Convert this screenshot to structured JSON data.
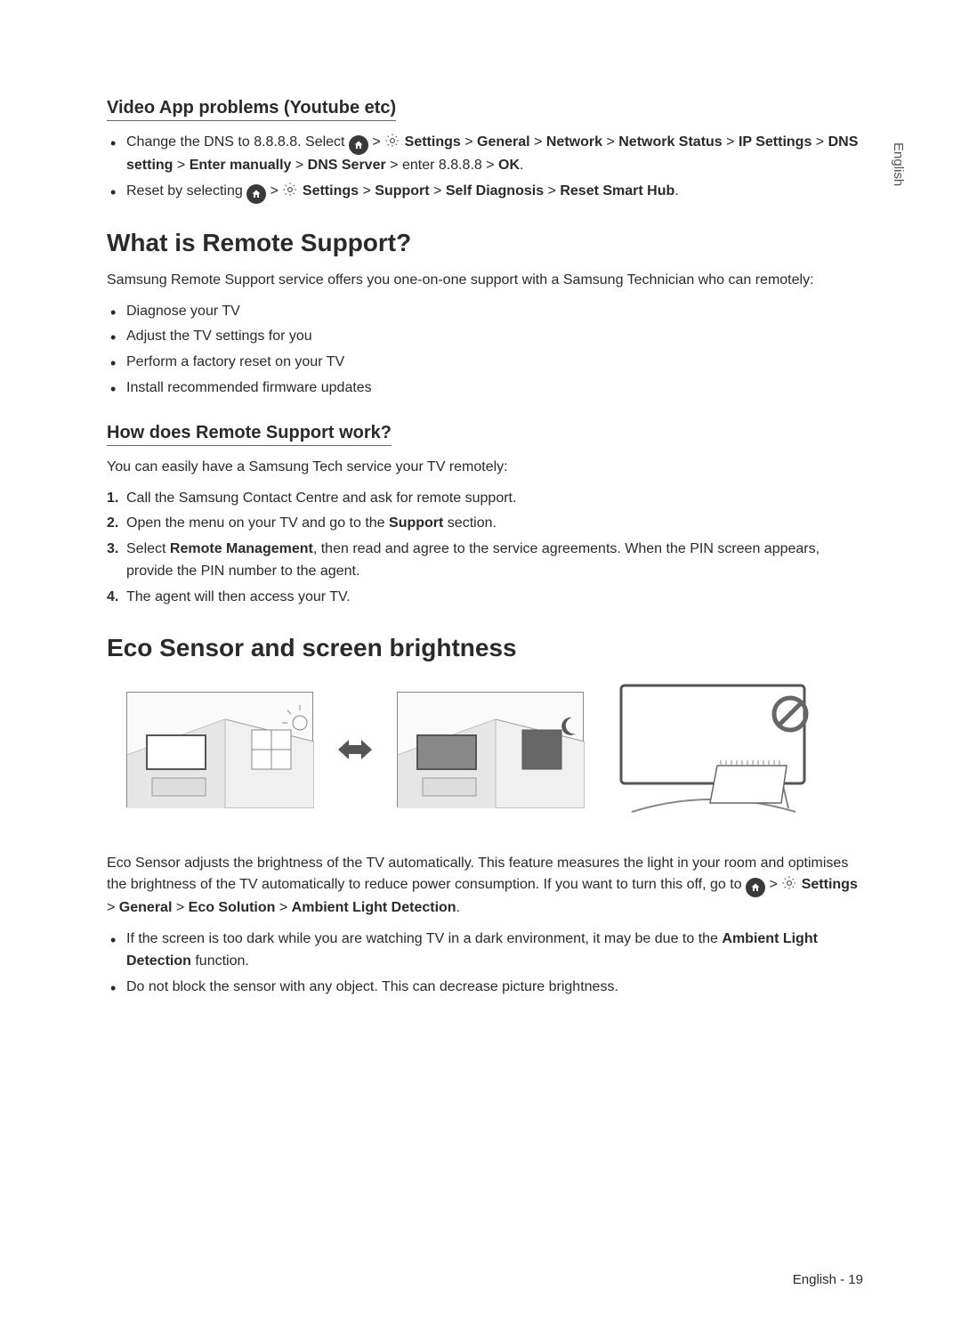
{
  "sideLabel": "English",
  "sec1": {
    "title": "Video App problems (Youtube etc)",
    "bullets": [
      {
        "pre": "Change the DNS to 8.8.8.8. Select ",
        "path": " Settings > General > Network > Network Status > IP Settings > DNS setting > Enter manually > DNS Server > ",
        "post": "enter 8.8.8.8 > ",
        "ok": "OK",
        "tail": "."
      },
      {
        "pre": "Reset by selecting ",
        "path": " Settings > Support > Self Diagnosis > Reset Smart Hub",
        "tail": "."
      }
    ]
  },
  "sec2": {
    "title": "What is Remote Support?",
    "intro": "Samsung Remote Support service offers you one-on-one support with a Samsung Technician who can remotely:",
    "bullets": [
      "Diagnose your TV",
      "Adjust the TV settings for you",
      "Perform a factory reset on your TV",
      "Install recommended firmware updates"
    ]
  },
  "sec3": {
    "title": "How does Remote Support work?",
    "intro": "You can easily have a Samsung Tech service your TV remotely:",
    "steps": [
      {
        "text": "Call the Samsung Contact Centre and ask for remote support."
      },
      {
        "pre": "Open the menu on your TV and go to the ",
        "bold": "Support",
        "post": " section."
      },
      {
        "pre": "Select ",
        "bold": "Remote Management",
        "post": ", then read and agree to the service agreements. When the PIN screen appears, provide the PIN number to the agent."
      },
      {
        "text": "The agent will then access your TV."
      }
    ]
  },
  "sec4": {
    "title": "Eco Sensor and screen brightness",
    "para1a": "Eco Sensor adjusts the brightness of the TV automatically. This feature measures the light in your room and optimises the brightness of the TV automatically to reduce power consumption. If you want to turn this off, go to ",
    "pathBold": " Settings > General > Eco Solution > Ambient Light Detection",
    "para1b": ".",
    "bullets": [
      {
        "pre": "If the screen is too dark while you are watching TV in a dark environment, it may be due to the ",
        "bold": "Ambient Light Detection",
        "post": " function."
      },
      {
        "text": "Do not block the sensor with any object. This can decrease picture brightness."
      }
    ]
  },
  "footer": "English - 19",
  "colors": {
    "text": "#2a2a2a",
    "rule": "#666666",
    "iconBg": "#3a3a3a",
    "prohibit": "#666666"
  }
}
